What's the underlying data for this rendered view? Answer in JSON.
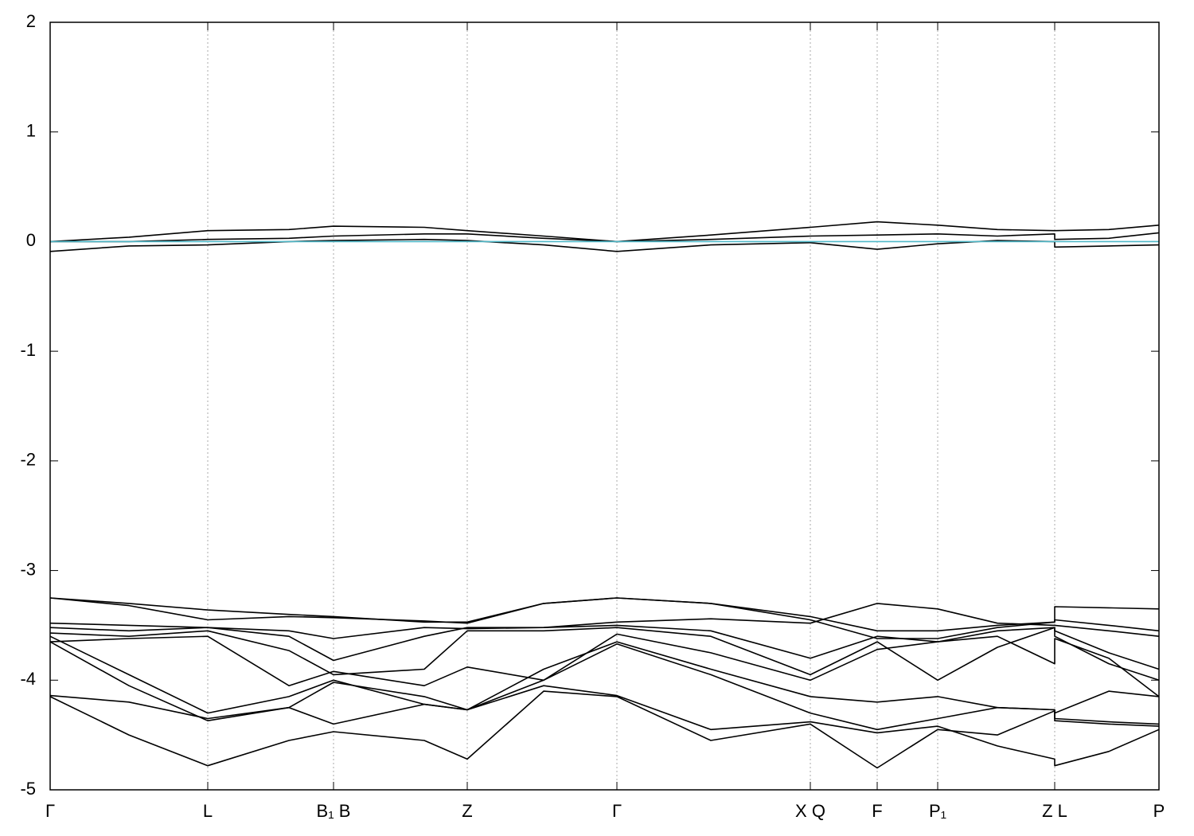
{
  "chart_data": {
    "type": "line",
    "x": [
      0,
      99,
      198,
      300,
      356,
      470,
      524,
      620,
      712,
      830,
      955,
      1039,
      1115,
      1190,
      1262,
      1262,
      1330,
      1393
    ],
    "xlim": [
      0,
      1393
    ],
    "xticks": [
      {
        "value": 0,
        "label": "Γ"
      },
      {
        "value": 198,
        "label": "L"
      },
      {
        "value": 356,
        "label": "B₁ B"
      },
      {
        "value": 524,
        "label": "Z"
      },
      {
        "value": 712,
        "label": "Γ"
      },
      {
        "value": 955,
        "label": "X Q"
      },
      {
        "value": 1039,
        "label": "F"
      },
      {
        "value": 1115,
        "label": "P₁"
      },
      {
        "value": 1262,
        "label": "Z L"
      },
      {
        "value": 1393,
        "label": "P"
      }
    ],
    "ylim": [
      -5,
      2
    ],
    "yticks": [
      -5,
      -4,
      -3,
      -2,
      -1,
      0,
      1,
      2
    ],
    "grid": true,
    "fermi_level": {
      "value": 0,
      "color": "#4fb8c8"
    },
    "series": [
      {
        "color": "#000000",
        "values": [
          0,
          0.04,
          0.1,
          0.11,
          0.14,
          0.13,
          0.1,
          0.05,
          0,
          0.06,
          0.13,
          0.18,
          0.15,
          0.11,
          0.1,
          0.1,
          0.11,
          0.15
        ]
      },
      {
        "color": "#000000",
        "values": [
          0,
          0,
          0.02,
          0.03,
          0.05,
          0.07,
          0.07,
          0.03,
          0,
          0.02,
          0.05,
          0.06,
          0.07,
          0.05,
          0.07,
          0.02,
          0.03,
          0.08
        ]
      },
      {
        "color": "#000000",
        "values": [
          -0.09,
          -0.04,
          -0.03,
          0,
          0.01,
          0.02,
          0.01,
          -0.03,
          -0.09,
          -0.03,
          -0.01,
          -0.07,
          -0.02,
          0.01,
          0,
          -0.05,
          -0.04,
          -0.03
        ]
      },
      {
        "color": "#000000",
        "values": [
          -3.25,
          -3.3,
          -3.36,
          -3.4,
          -3.42,
          -3.47,
          -3.47,
          -3.3,
          -3.25,
          -3.3,
          -3.42,
          -3.55,
          -3.55,
          -3.5,
          -3.47,
          -3.33,
          -3.34,
          -3.35
        ]
      },
      {
        "color": "#000000",
        "values": [
          -3.25,
          -3.32,
          -3.45,
          -3.42,
          -3.43,
          -3.46,
          -3.48,
          -3.3,
          -3.25,
          -3.3,
          -3.45,
          -3.62,
          -3.62,
          -3.52,
          -3.47,
          -3.45,
          -3.5,
          -3.55
        ]
      },
      {
        "color": "#000000",
        "values": [
          -3.48,
          -3.5,
          -3.52,
          -3.55,
          -3.62,
          -3.52,
          -3.53,
          -3.52,
          -3.47,
          -3.44,
          -3.48,
          -3.3,
          -3.35,
          -3.48,
          -3.5,
          -3.5,
          -3.55,
          -3.6
        ]
      },
      {
        "color": "#000000",
        "values": [
          -3.52,
          -3.55,
          -3.52,
          -3.6,
          -3.82,
          -3.6,
          -3.52,
          -3.52,
          -3.5,
          -3.55,
          -3.8,
          -3.6,
          -3.65,
          -3.55,
          -3.52,
          -3.55,
          -3.75,
          -3.9
        ]
      },
      {
        "color": "#000000",
        "values": [
          -3.57,
          -3.6,
          -3.55,
          -3.73,
          -3.95,
          -3.9,
          -3.55,
          -3.55,
          -3.52,
          -3.6,
          -3.95,
          -3.65,
          -4.0,
          -3.7,
          -3.52,
          -3.6,
          -3.85,
          -4.0
        ]
      },
      {
        "color": "#000000",
        "values": [
          -3.65,
          -3.62,
          -3.6,
          -4.05,
          -3.92,
          -4.05,
          -3.88,
          -4.0,
          -3.58,
          -3.75,
          -4.0,
          -3.72,
          -3.65,
          -3.6,
          -3.85,
          -3.62,
          -3.8,
          -4.15
        ]
      },
      {
        "color": "#000000",
        "values": [
          -3.6,
          -3.95,
          -4.3,
          -4.15,
          -4.0,
          -4.22,
          -4.27,
          -3.9,
          -3.65,
          -3.9,
          -4.15,
          -4.2,
          -4.15,
          -4.25,
          -4.27,
          -4.3,
          -4.1,
          -4.15
        ]
      },
      {
        "color": "#000000",
        "values": [
          -3.65,
          -4.05,
          -4.37,
          -4.25,
          -4.4,
          -4.22,
          -4.27,
          -4.0,
          -3.67,
          -3.95,
          -4.3,
          -4.45,
          -4.35,
          -4.25,
          -4.27,
          -4.35,
          -4.38,
          -4.4
        ]
      },
      {
        "color": "#000000",
        "values": [
          -4.14,
          -4.2,
          -4.35,
          -4.25,
          -4.02,
          -4.15,
          -4.27,
          -4.05,
          -4.14,
          -4.45,
          -4.38,
          -4.48,
          -4.42,
          -4.6,
          -4.72,
          -4.78,
          -4.65,
          -4.45
        ]
      },
      {
        "color": "#000000",
        "values": [
          -4.15,
          -4.5,
          -4.78,
          -4.55,
          -4.47,
          -4.55,
          -4.72,
          -4.1,
          -4.15,
          -4.55,
          -4.4,
          -4.8,
          -4.45,
          -4.5,
          -4.28,
          -4.37,
          -4.4,
          -4.42
        ]
      }
    ]
  }
}
